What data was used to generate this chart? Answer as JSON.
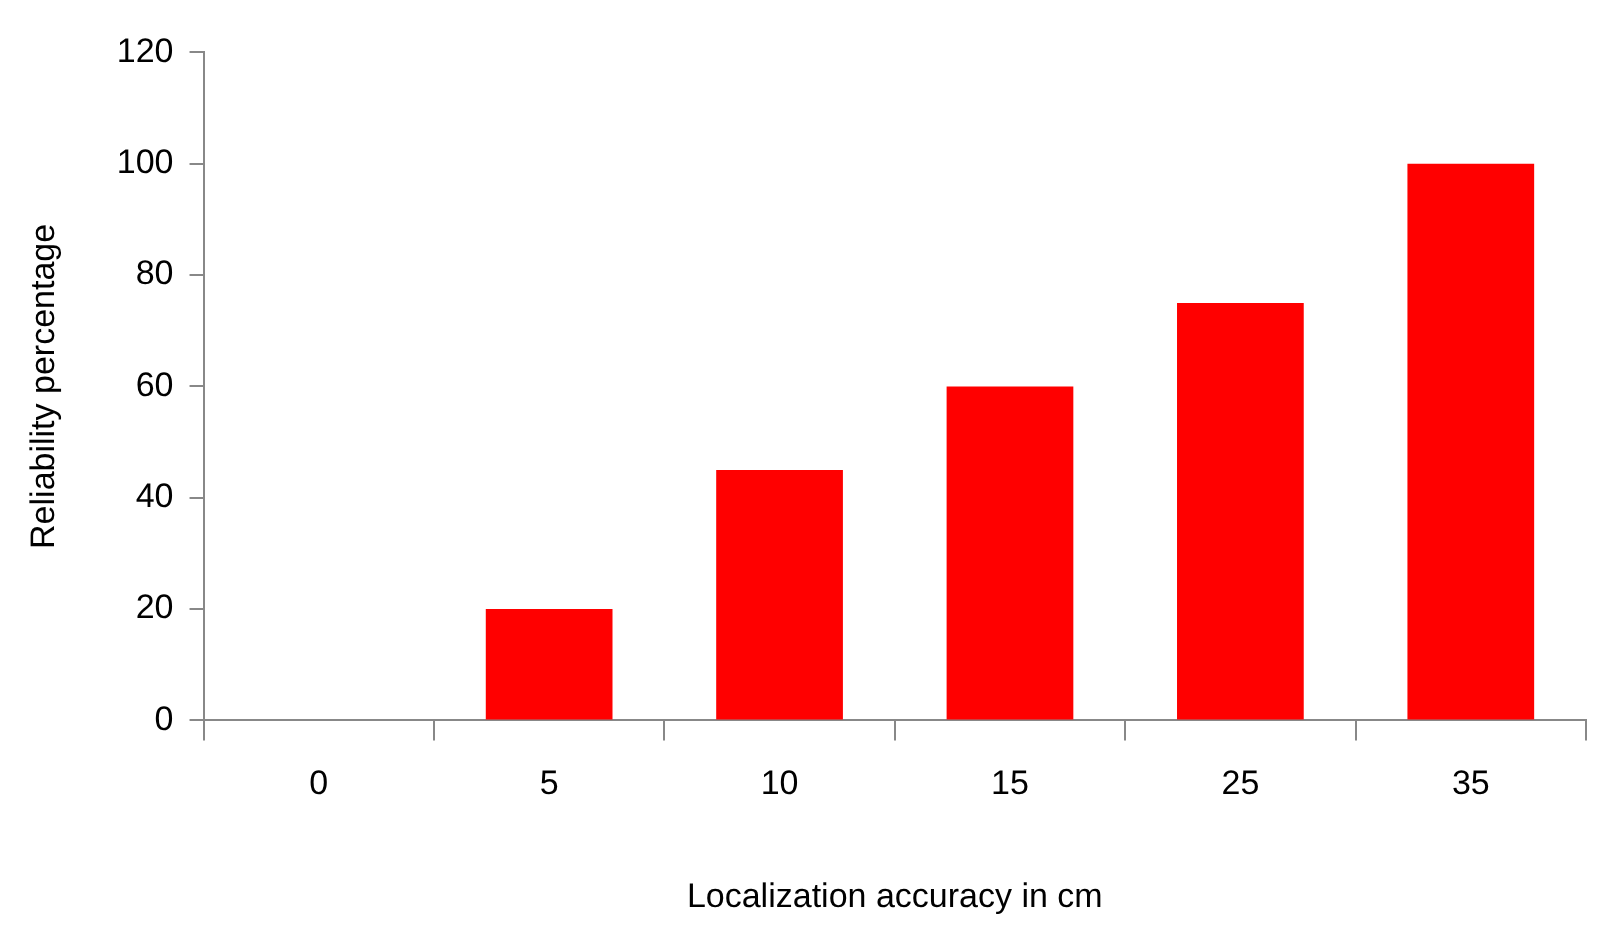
{
  "chart_data": {
    "type": "bar",
    "xlabel": "Localization accuracy in cm",
    "ylabel": "Reliability percentage",
    "categories": [
      "0",
      "5",
      "10",
      "15",
      "25",
      "35"
    ],
    "values": [
      0,
      20,
      45,
      60,
      75,
      100
    ],
    "color": "#ff0000",
    "ylim": [
      0,
      120
    ],
    "yticks": [
      0,
      20,
      40,
      60,
      80,
      100,
      120
    ],
    "grid": false,
    "legend": false
  }
}
